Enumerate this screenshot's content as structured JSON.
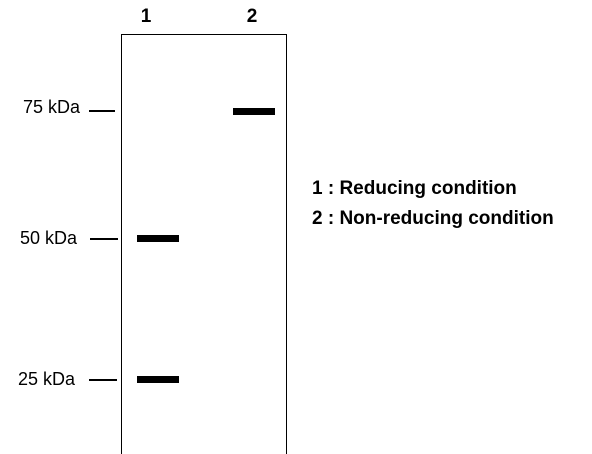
{
  "lanes": [
    {
      "label": "1"
    },
    {
      "label": "2"
    }
  ],
  "markers": [
    {
      "label": "75 kDa"
    },
    {
      "label": "50 kDa"
    },
    {
      "label": "25 kDa"
    }
  ],
  "legend": [
    {
      "text": "1 : Reducing condition"
    },
    {
      "text": "2 : Non-reducing condition"
    }
  ]
}
